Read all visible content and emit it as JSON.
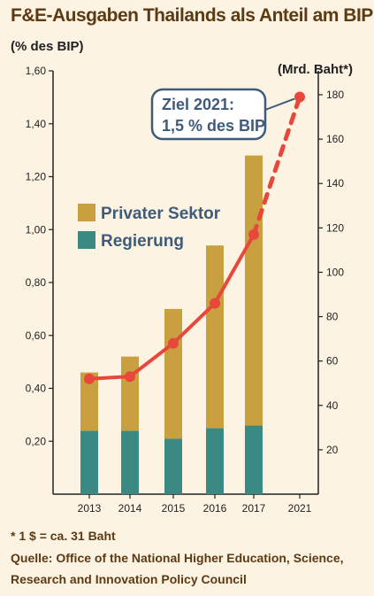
{
  "title": "F&E-Ausgaben Thailands als Anteil am BIP",
  "unit_left": "(% des BIP)",
  "unit_right": "(Mrd. Baht*)",
  "footnote": "* 1 $ = ca. 31 Baht",
  "source_line1": "Quelle: Office of the National Higher Education, Science,",
  "source_line2": "Research and Innovation Policy Council",
  "callout": {
    "line1": "Ziel 2021:",
    "line2": "1,5 % des BIP"
  },
  "colors": {
    "private": "#c9a03f",
    "government": "#3a8a83",
    "line": "#e8483b",
    "callout_border": "#3f5b7a",
    "text_dark": "#5c3a14",
    "background": "#fdf3e3"
  },
  "chart_data": {
    "type": "bar",
    "categories": [
      "2013",
      "2014",
      "2015",
      "2016",
      "2017",
      "2021"
    ],
    "stacked": true,
    "series": [
      {
        "name": "Regierung",
        "values": [
          0.24,
          0.24,
          0.21,
          0.25,
          0.26,
          null
        ]
      },
      {
        "name": "Privater Sektor",
        "values": [
          0.22,
          0.28,
          0.49,
          0.69,
          1.02,
          null
        ]
      }
    ],
    "line_series": {
      "axis": "right",
      "values": [
        52,
        53,
        68,
        86,
        117,
        179
      ],
      "dashed_last_segment": true
    },
    "y_left": {
      "ylim": [
        0,
        1.6
      ],
      "ticks": [
        "0,20",
        "0,40",
        "0,60",
        "0,80",
        "1,00",
        "1,20",
        "1,40",
        "1,60"
      ]
    },
    "y_right": {
      "ylim": [
        0,
        180
      ],
      "ticks": [
        "20",
        "40",
        "60",
        "80",
        "100",
        "120",
        "140",
        "160",
        "180"
      ]
    },
    "legend": [
      "Privater Sektor",
      "Regierung"
    ],
    "legend_position": "left-middle",
    "grid": false
  }
}
